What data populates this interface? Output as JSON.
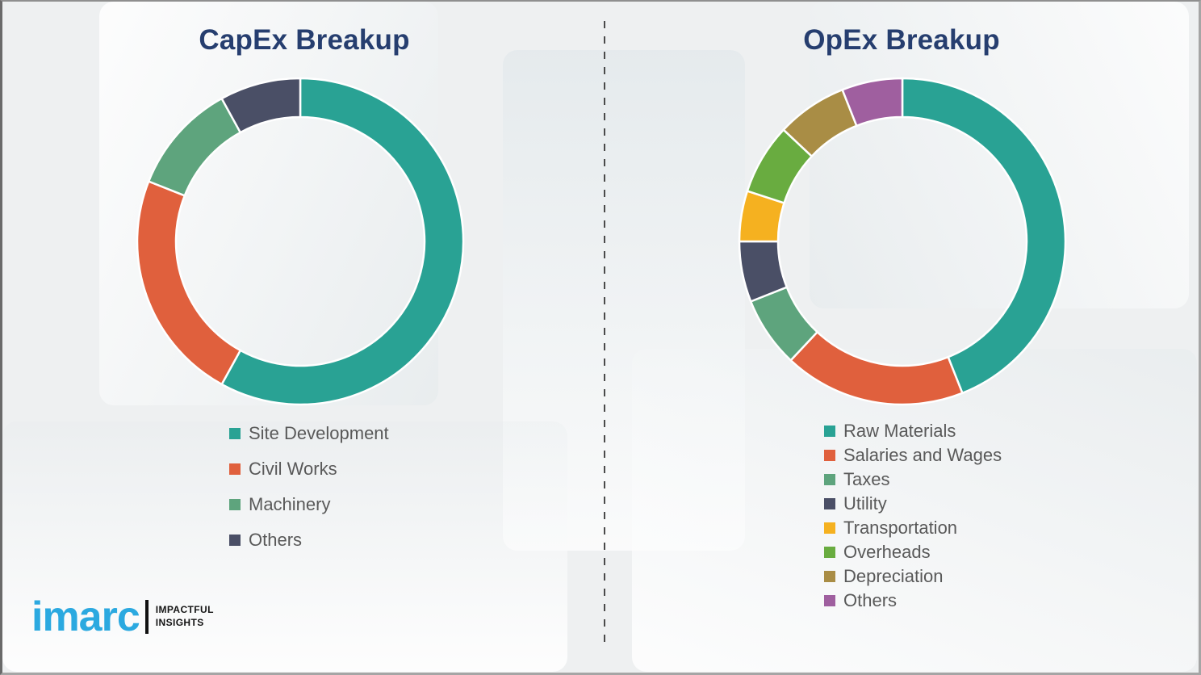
{
  "chart_data": [
    {
      "type": "pie",
      "subtype": "donut",
      "title": "CapEx Breakup",
      "categories": [
        "Site Development",
        "Civil Works",
        "Machinery",
        "Others"
      ],
      "values": [
        58,
        23,
        11,
        8
      ],
      "colors": [
        "#29a294",
        "#e0603d",
        "#5ea47d",
        "#4a4f66"
      ],
      "start_angle_deg": 0,
      "direction": "clockwise",
      "legend_position": "below-left",
      "data_labels": false
    },
    {
      "type": "pie",
      "subtype": "donut",
      "title": "OpEx Breakup",
      "categories": [
        "Raw Materials",
        "Salaries and Wages",
        "Taxes",
        "Utility",
        "Transportation",
        "Overheads",
        "Depreciation",
        "Others"
      ],
      "values": [
        44,
        18,
        7,
        6,
        5,
        7,
        7,
        6
      ],
      "colors": [
        "#29a294",
        "#e0603d",
        "#5ea47d",
        "#4a4f66",
        "#f5b120",
        "#69ac40",
        "#a98d45",
        "#9f5f9f"
      ],
      "start_angle_deg": 0,
      "direction": "clockwise",
      "legend_position": "below-left",
      "data_labels": false
    }
  ],
  "logo": {
    "brand": "imarc",
    "tagline": [
      "IMPACTFUL",
      "INSIGHTS"
    ],
    "brand_color": "#2ba9e0"
  },
  "colors": {
    "title_text": "#263e6f",
    "legend_text": "#595959",
    "background": "#eef0f1",
    "divider": "#4a4a4a",
    "segment_gap_stroke": "#ffffff"
  }
}
